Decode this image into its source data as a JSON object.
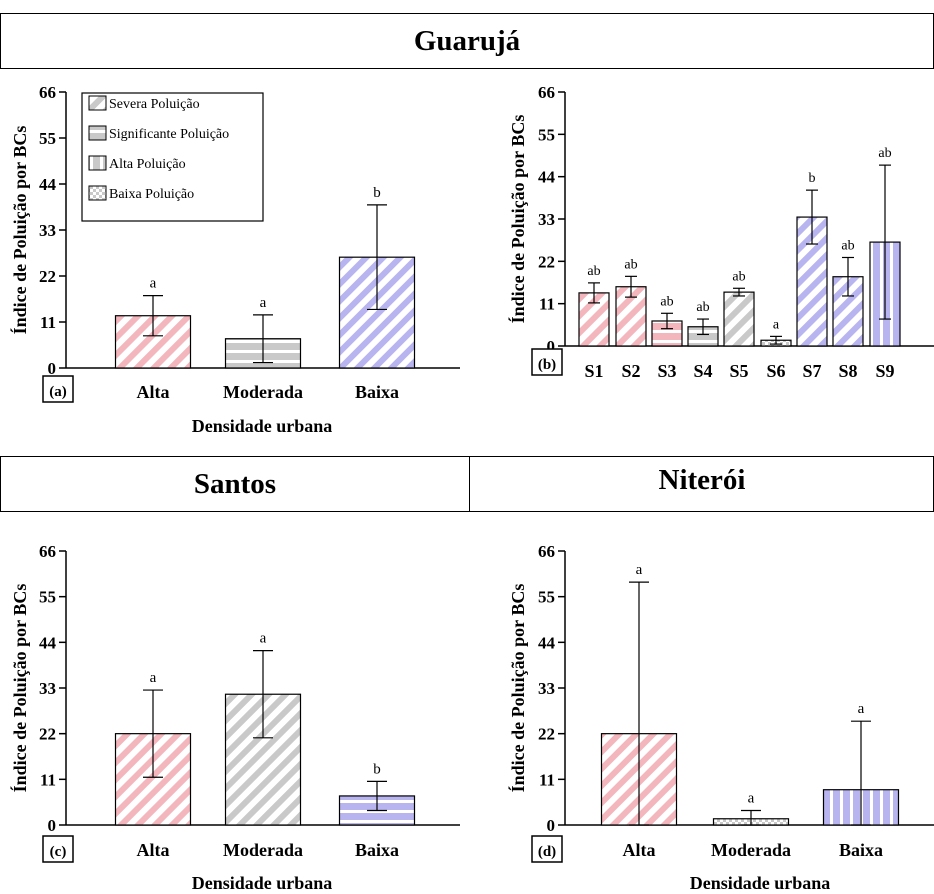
{
  "colors": {
    "pink": "#f4b6bd",
    "gray": "#c9c9c9",
    "blue": "#b8b4f0",
    "stroke": "#000000"
  },
  "headers": {
    "guaruja": "Guarujá",
    "santos": "Santos",
    "niteroi": "Niterói"
  },
  "legend": {
    "items": [
      {
        "label": "Severa Poluição",
        "pattern": "diagonal"
      },
      {
        "label": "Significante Poluição",
        "pattern": "horizontal"
      },
      {
        "label": "Alta Poluição",
        "pattern": "vertical"
      },
      {
        "label": "Baixa Poluição",
        "pattern": "checker"
      }
    ]
  },
  "chart_data": [
    {
      "panel": "(a)",
      "type": "bar",
      "categories": [
        "Alta",
        "Moderada",
        "Baixa"
      ],
      "values": [
        12.5,
        7.0,
        26.5
      ],
      "errors": [
        4.8,
        5.7,
        12.5
      ],
      "annotations": [
        "a",
        "a",
        "b"
      ],
      "colors": [
        "pink",
        "gray",
        "blue"
      ],
      "patterns": [
        "diagonal",
        "horizontal",
        "diagonal"
      ],
      "ylabel": "Índice de Poluição por BCs",
      "xlabel": "Densidade urbana",
      "yticks": [
        0,
        11,
        22,
        33,
        44,
        55,
        66
      ],
      "ylim": [
        0,
        66
      ],
      "legend": "top-left"
    },
    {
      "panel": "(b)",
      "type": "bar",
      "categories": [
        "S1",
        "S2",
        "S3",
        "S4",
        "S5",
        "S6",
        "S7",
        "S8",
        "S9"
      ],
      "values": [
        13.8,
        15.4,
        6.5,
        5.0,
        14.0,
        1.5,
        33.5,
        18.0,
        27.0
      ],
      "errors": [
        2.6,
        2.7,
        2.0,
        2.0,
        1.0,
        1.0,
        7.0,
        5.0,
        20.0
      ],
      "annotations": [
        "ab",
        "ab",
        "ab",
        "ab",
        "ab",
        "a",
        "b",
        "ab",
        "ab"
      ],
      "colors": [
        "pink",
        "pink",
        "pink",
        "gray",
        "gray",
        "gray",
        "blue",
        "blue",
        "blue"
      ],
      "patterns": [
        "diagonal",
        "diagonal",
        "horizontal",
        "horizontal",
        "diagonal",
        "checker",
        "diagonal",
        "diagonal",
        "vertical"
      ],
      "ylabel": "Índice de Poluição por BCs",
      "xlabel": "",
      "yticks": [
        0,
        11,
        22,
        33,
        44,
        55,
        66
      ],
      "ylim": [
        0,
        66
      ]
    },
    {
      "panel": "(c)",
      "type": "bar",
      "categories": [
        "Alta",
        "Moderada",
        "Baixa"
      ],
      "values": [
        22.0,
        31.5,
        7.0
      ],
      "errors": [
        10.5,
        10.5,
        3.5
      ],
      "annotations": [
        "a",
        "a",
        "b"
      ],
      "colors": [
        "pink",
        "gray",
        "blue"
      ],
      "patterns": [
        "diagonal",
        "diagonal",
        "horizontal"
      ],
      "ylabel": "Índice de Poluição por BCs",
      "xlabel": "Densidade urbana",
      "yticks": [
        0,
        11,
        22,
        33,
        44,
        55,
        66
      ],
      "ylim": [
        0,
        66
      ]
    },
    {
      "panel": "(d)",
      "type": "bar",
      "categories": [
        "Alta",
        "Moderada",
        "Baixa"
      ],
      "values": [
        22.0,
        1.5,
        8.5
      ],
      "errors": [
        36.5,
        2.0,
        16.5
      ],
      "annotations": [
        "a",
        "a",
        "a"
      ],
      "colors": [
        "pink",
        "gray",
        "blue"
      ],
      "patterns": [
        "diagonal",
        "checker",
        "vertical"
      ],
      "ylabel": "Índice de Poluição por BCs",
      "xlabel": "Densidade urbana",
      "yticks": [
        0,
        11,
        22,
        33,
        44,
        55,
        66
      ],
      "ylim": [
        0,
        66
      ]
    }
  ]
}
